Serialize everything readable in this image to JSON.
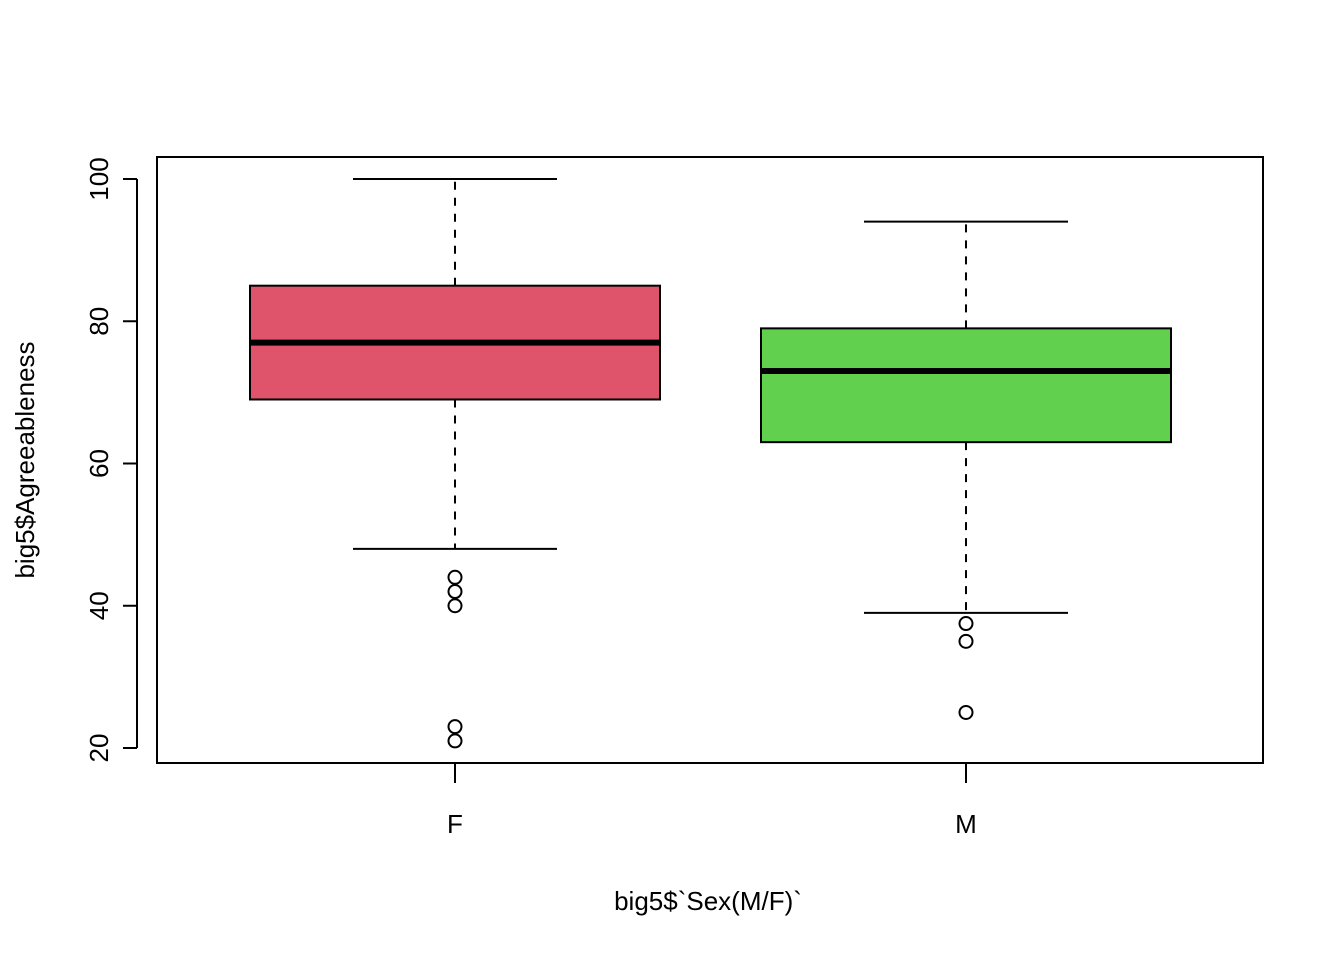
{
  "chart_data": {
    "type": "boxplot",
    "title": "",
    "xlabel": "big5$`Sex(M/F)`",
    "ylabel": "big5$Agreeableness",
    "ylim": [
      18,
      103
    ],
    "yticks": [
      20,
      40,
      60,
      80,
      100
    ],
    "grid": false,
    "legend": "none",
    "categories": [
      "F",
      "M"
    ],
    "boxes": [
      {
        "category": "F",
        "color": "#DF536B",
        "whisker_low": 48,
        "q1": 69,
        "median": 77,
        "q3": 85,
        "whisker_high": 100,
        "outliers": [
          44,
          42,
          40,
          23,
          21
        ]
      },
      {
        "category": "M",
        "color": "#61D04F",
        "whisker_low": 39,
        "q1": 63,
        "median": 73,
        "q3": 79,
        "whisker_high": 94,
        "outliers": [
          37.5,
          35,
          25
        ]
      }
    ]
  }
}
